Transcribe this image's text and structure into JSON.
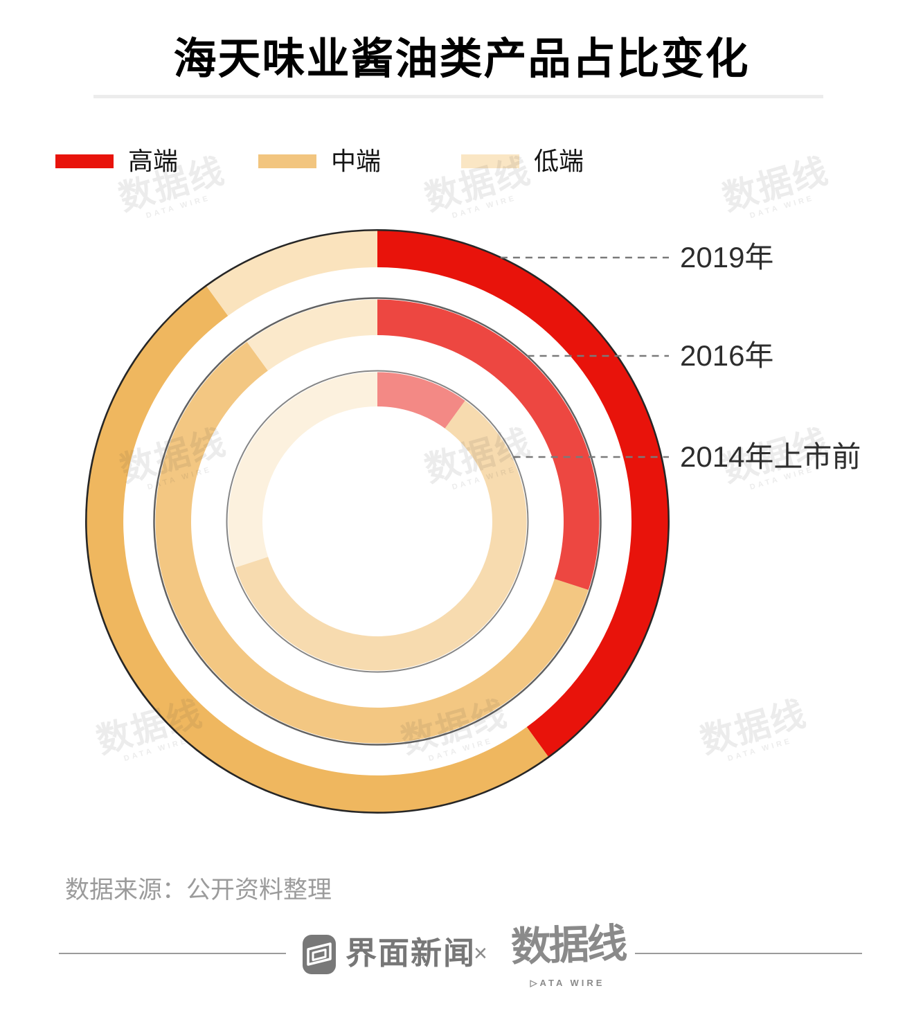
{
  "title": "海天味业酱油类产品占比变化",
  "legend": {
    "items": [
      {
        "label": "高端",
        "color": "#E8130B"
      },
      {
        "label": "中端",
        "color": "#F2C57F"
      },
      {
        "label": "低端",
        "color": "#FAE6C4"
      }
    ]
  },
  "chart_data": {
    "type": "pie",
    "subtype": "concentric-donut",
    "title": "海天味业酱油类产品占比变化",
    "categories": [
      "高端",
      "中端",
      "低端"
    ],
    "category_colors": [
      "#E8130B",
      "#EFB75F",
      "#FAE3BD"
    ],
    "series": [
      {
        "name": "2019年",
        "values": [
          40,
          50,
          10
        ]
      },
      {
        "name": "2016年",
        "values": [
          30,
          60,
          10
        ]
      },
      {
        "name": "2014年上市前",
        "values": [
          10,
          60,
          30
        ]
      }
    ],
    "unit": "percent",
    "start_angle_deg": 0,
    "direction": "clockwise",
    "ring_order": "outer-to-inner",
    "ring_opacities": [
      1,
      0.78,
      0.5
    ],
    "legend_position": "top-left",
    "outline_color": "#000000",
    "callout_line_color": "#7a7a7a"
  },
  "source": "数据来源：公开资料整理",
  "footer": {
    "left_logo_text": "界面新闻",
    "separator": "×",
    "right_logo_text": "数据线",
    "right_logo_sub": "▷ATA WIRE"
  },
  "watermark": {
    "text": "数据线",
    "sub": "DATA WIRE"
  }
}
